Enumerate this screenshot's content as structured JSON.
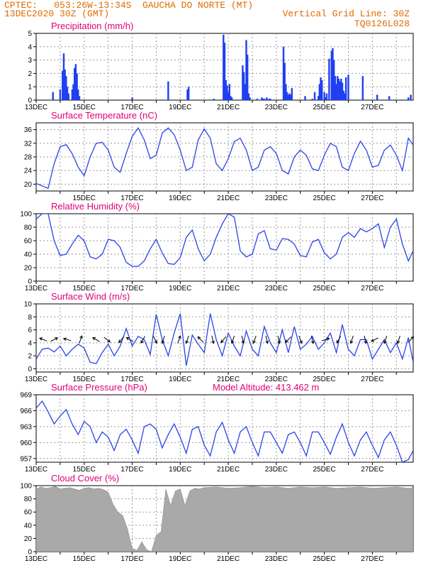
{
  "header": {
    "line1": "CPTEC:   053:26W-13:34S  GAUCHA DO NORTE (MT)",
    "line2": "13DEC2020 30Z (GMT)",
    "grid_note": "Vertical Grid Line: 30Z",
    "code": "TQ0126L028",
    "altitude_note": "Model Altitude: 413.462 m"
  },
  "colors": {
    "line": "#2b44e8",
    "bar": "#1f3ff0",
    "cloud": "#a9a9a9",
    "title": "#e0007a",
    "header": "#e06a00",
    "arrow": "#000000"
  },
  "chart_data": [
    {
      "type": "bar",
      "title": "Precipitation (mm/h)",
      "ylim": [
        0,
        5
      ],
      "yticks": [
        0,
        1,
        2,
        3,
        4,
        5
      ],
      "x_days_start": 13.0,
      "x_days_end": 28.7,
      "xticks": [
        "13DEC",
        "15DEC",
        "17DEC",
        "19DEC",
        "21DEC",
        "23DEC",
        "25DEC",
        "27DEC"
      ],
      "x": [
        13.7,
        14.0,
        14.1,
        14.15,
        14.2,
        14.25,
        14.3,
        14.35,
        14.5,
        14.55,
        14.6,
        14.65,
        14.7,
        14.75,
        14.8,
        17.0,
        18.5,
        19.3,
        19.35,
        20.4,
        20.8,
        20.85,
        20.9,
        20.95,
        21.0,
        21.05,
        21.1,
        21.15,
        21.6,
        21.65,
        21.7,
        21.75,
        21.8,
        21.85,
        21.9,
        22.2,
        22.4,
        22.45,
        22.5,
        22.6,
        22.7,
        22.75,
        23.3,
        23.35,
        23.4,
        23.45,
        23.5,
        23.55,
        23.6,
        23.65,
        24.2,
        24.5,
        24.6,
        24.75,
        24.8,
        24.85,
        24.9,
        25.0,
        25.05,
        25.1,
        25.2,
        25.3,
        25.35,
        25.4,
        25.45,
        25.5,
        25.55,
        25.6,
        25.65,
        25.7,
        25.75,
        25.8,
        25.85,
        25.9,
        26.0,
        26.6,
        27.2,
        27.7,
        28.5,
        28.6
      ],
      "values": [
        0.6,
        0.8,
        2.2,
        3.5,
        2.3,
        1.8,
        1.0,
        0.5,
        0.8,
        1.2,
        2.4,
        2.7,
        2.0,
        0.8,
        0.3,
        0.2,
        1.4,
        0.8,
        1.0,
        0.1,
        4.9,
        4.3,
        1.5,
        1.1,
        0.6,
        1.2,
        0.3,
        0.2,
        2.6,
        2.1,
        1.2,
        4.5,
        3.4,
        0.5,
        0.2,
        0.1,
        0.2,
        0.1,
        0.1,
        0.2,
        0.1,
        0.1,
        4.0,
        2.8,
        1.2,
        0.6,
        0.4,
        0.5,
        0.4,
        0.9,
        0.3,
        0.1,
        0.6,
        0.3,
        1.2,
        1.7,
        1.5,
        0.6,
        0.2,
        0.5,
        3.1,
        3.7,
        3.9,
        3.0,
        1.8,
        1.2,
        1.8,
        1.6,
        1.4,
        1.6,
        1.3,
        0.7,
        0.5,
        1.7,
        1.9,
        1.8,
        0.4,
        0.3,
        0.2,
        0.4
      ]
    },
    {
      "type": "line",
      "title": "Surface Temperature (nC)",
      "ylim": [
        18,
        38
      ],
      "yticks": [
        20,
        24,
        28,
        32,
        36
      ],
      "xticks": [
        "15DEC",
        "17DEC",
        "19DEC",
        "21DEC",
        "23DEC",
        "25DEC",
        "27DEC"
      ],
      "x": [
        13.0,
        13.25,
        13.5,
        13.75,
        14.0,
        14.25,
        14.5,
        14.75,
        15.0,
        15.25,
        15.5,
        15.75,
        16.0,
        16.25,
        16.5,
        16.75,
        17.0,
        17.25,
        17.5,
        17.75,
        18.0,
        18.25,
        18.5,
        18.75,
        19.0,
        19.25,
        19.5,
        19.75,
        20.0,
        20.25,
        20.5,
        20.75,
        21.0,
        21.25,
        21.5,
        21.75,
        22.0,
        22.25,
        22.5,
        22.75,
        23.0,
        23.25,
        23.5,
        23.75,
        24.0,
        24.25,
        24.5,
        24.75,
        25.0,
        25.25,
        25.5,
        25.75,
        26.0,
        26.25,
        26.5,
        26.75,
        27.0,
        27.25,
        27.5,
        27.75,
        28.0,
        28.25,
        28.5,
        28.7
      ],
      "values": [
        20.2,
        19.5,
        18.8,
        26.0,
        31.0,
        31.6,
        29.0,
        25.0,
        22.5,
        28.0,
        32.0,
        32.3,
        30.0,
        25.0,
        23.5,
        29.0,
        34.0,
        36.5,
        33.0,
        27.5,
        28.5,
        35.0,
        36.5,
        34.5,
        30.0,
        24.0,
        25.0,
        33.0,
        36.2,
        33.5,
        26.0,
        24.0,
        27.5,
        32.5,
        33.5,
        30.0,
        24.0,
        25.0,
        30.0,
        31.0,
        29.0,
        24.0,
        23.0,
        28.0,
        30.0,
        28.5,
        24.5,
        24.0,
        28.5,
        32.0,
        31.0,
        25.0,
        24.0,
        29.0,
        32.6,
        30.0,
        25.0,
        25.5,
        30.0,
        31.5,
        28.5,
        24.0,
        33.5,
        31.5
      ]
    },
    {
      "type": "line",
      "title": "Relative Humidity (%)",
      "ylim": [
        0,
        100
      ],
      "yticks": [
        0,
        20,
        40,
        60,
        80,
        100
      ],
      "xticks": [
        "13DEC",
        "15DEC",
        "17DEC",
        "19DEC",
        "21DEC",
        "23DEC",
        "25DEC",
        "27DEC"
      ],
      "x": [
        13.0,
        13.25,
        13.5,
        13.75,
        14.0,
        14.25,
        14.5,
        14.75,
        15.0,
        15.25,
        15.5,
        15.75,
        16.0,
        16.25,
        16.5,
        16.75,
        17.0,
        17.25,
        17.5,
        17.75,
        18.0,
        18.25,
        18.5,
        18.75,
        19.0,
        19.25,
        19.5,
        19.75,
        20.0,
        20.25,
        20.5,
        20.75,
        21.0,
        21.25,
        21.5,
        21.75,
        22.0,
        22.25,
        22.5,
        22.75,
        23.0,
        23.25,
        23.5,
        23.75,
        24.0,
        24.25,
        24.5,
        24.75,
        25.0,
        25.25,
        25.5,
        25.75,
        26.0,
        26.25,
        26.5,
        26.75,
        27.0,
        27.25,
        27.5,
        27.75,
        28.0,
        28.25,
        28.5,
        28.7
      ],
      "values": [
        92,
        100,
        100,
        60,
        38,
        40,
        55,
        68,
        60,
        36,
        33,
        40,
        62,
        60,
        50,
        28,
        22,
        22,
        30,
        48,
        62,
        42,
        26,
        25,
        35,
        65,
        76,
        48,
        30,
        40,
        65,
        85,
        100,
        95,
        45,
        36,
        40,
        70,
        75,
        48,
        46,
        63,
        62,
        55,
        38,
        36,
        58,
        62,
        42,
        33,
        40,
        65,
        72,
        65,
        78,
        73,
        78,
        85,
        50,
        80,
        92,
        55,
        30,
        45
      ]
    },
    {
      "type": "line",
      "title": "Surface Wind (m/s)",
      "ylim": [
        -0.5,
        10
      ],
      "yticks": [
        0,
        2,
        4,
        6,
        8,
        10
      ],
      "xticks": [
        "13DEC",
        "15DEC",
        "17DEC",
        "19DEC",
        "21DEC",
        "23DEC",
        "25DEC",
        "27DEC"
      ],
      "x": [
        13.0,
        13.25,
        13.5,
        13.75,
        14.0,
        14.25,
        14.5,
        14.75,
        15.0,
        15.25,
        15.5,
        15.75,
        16.0,
        16.25,
        16.5,
        16.75,
        17.0,
        17.25,
        17.5,
        17.75,
        18.0,
        18.25,
        18.5,
        18.75,
        19.0,
        19.25,
        19.5,
        19.75,
        20.0,
        20.25,
        20.5,
        20.75,
        21.0,
        21.25,
        21.5,
        21.75,
        22.0,
        22.25,
        22.5,
        22.75,
        23.0,
        23.25,
        23.5,
        23.75,
        24.0,
        24.25,
        24.5,
        24.75,
        25.0,
        25.25,
        25.5,
        25.75,
        26.0,
        26.25,
        26.5,
        26.75,
        27.0,
        27.25,
        27.5,
        27.75,
        28.0,
        28.25,
        28.5,
        28.7
      ],
      "values": [
        1.5,
        3.0,
        3.2,
        2.6,
        3.5,
        2.0,
        3.0,
        3.8,
        3.2,
        1.0,
        0.8,
        2.5,
        3.8,
        2.0,
        3.5,
        6.2,
        3.5,
        5.0,
        4.5,
        2.2,
        8.4,
        4.5,
        2.0,
        5.5,
        8.5,
        0.5,
        5.2,
        3.8,
        2.5,
        8.5,
        4.5,
        2.0,
        5.5,
        3.5,
        2.0,
        5.8,
        3.0,
        2.0,
        6.5,
        4.0,
        2.5,
        6.0,
        2.5,
        6.5,
        3.0,
        3.8,
        5.0,
        3.0,
        4.0,
        5.5,
        2.5,
        6.8,
        3.0,
        2.0,
        4.5,
        4.5,
        1.5,
        3.0,
        4.5,
        2.5,
        4.0,
        1.5,
        4.8,
        1.0
      ],
      "arrows": [
        {
          "x": 13.3,
          "u": -1.0,
          "v": 0.4
        },
        {
          "x": 13.75,
          "u": 0.6,
          "v": 0.3
        },
        {
          "x": 14.3,
          "u": -0.7,
          "v": 0.2
        },
        {
          "x": 14.85,
          "u": 0.3,
          "v": 0.8
        },
        {
          "x": 15.5,
          "u": -0.7,
          "v": 0.4
        },
        {
          "x": 15.95,
          "u": 0.5,
          "v": -0.4
        },
        {
          "x": 16.55,
          "u": -0.6,
          "v": -0.7
        },
        {
          "x": 16.9,
          "u": -0.8,
          "v": 0.5
        },
        {
          "x": 17.45,
          "u": -0.5,
          "v": -0.9
        },
        {
          "x": 17.95,
          "u": 0.5,
          "v": -1.0
        },
        {
          "x": 18.3,
          "u": -0.3,
          "v": -1.0
        },
        {
          "x": 18.95,
          "u": 0.3,
          "v": 0.8
        },
        {
          "x": 19.3,
          "u": -0.3,
          "v": -0.9
        },
        {
          "x": 19.85,
          "u": -0.6,
          "v": 0.6
        },
        {
          "x": 20.35,
          "u": 0.2,
          "v": -0.9
        },
        {
          "x": 20.8,
          "u": -0.5,
          "v": -0.6
        },
        {
          "x": 21.2,
          "u": -0.3,
          "v": -0.9
        },
        {
          "x": 21.6,
          "u": 0.2,
          "v": -0.9
        },
        {
          "x": 22.1,
          "u": -0.3,
          "v": -0.8
        },
        {
          "x": 22.6,
          "u": 0.2,
          "v": -0.9
        },
        {
          "x": 23.1,
          "u": 0.2,
          "v": -0.9
        },
        {
          "x": 23.5,
          "u": -0.6,
          "v": -0.6
        },
        {
          "x": 24.0,
          "u": 0.3,
          "v": -0.8
        },
        {
          "x": 24.5,
          "u": 0.2,
          "v": -0.9
        },
        {
          "x": 25.05,
          "u": 0.6,
          "v": 0.2
        },
        {
          "x": 25.6,
          "u": -0.4,
          "v": -0.7
        },
        {
          "x": 26.15,
          "u": -0.3,
          "v": -0.9
        },
        {
          "x": 26.7,
          "u": 0.2,
          "v": -0.9
        },
        {
          "x": 27.1,
          "u": -0.8,
          "v": -0.4
        },
        {
          "x": 27.55,
          "u": -0.3,
          "v": -0.9
        },
        {
          "x": 28.1,
          "u": -0.3,
          "v": -0.9
        },
        {
          "x": 28.6,
          "u": 0.5,
          "v": 0.5
        }
      ]
    },
    {
      "type": "line",
      "title": "Surface Pressure (hPa)",
      "ylim": [
        956.3,
        969
      ],
      "yticks": [
        957,
        960,
        963,
        966,
        969
      ],
      "xticks": [
        "13DEC",
        "15DEC",
        "17DEC",
        "19DEC",
        "21DEC",
        "23DEC",
        "25DEC",
        "27DEC"
      ],
      "x": [
        13.0,
        13.25,
        13.5,
        13.75,
        14.0,
        14.25,
        14.5,
        14.75,
        15.0,
        15.25,
        15.5,
        15.75,
        16.0,
        16.25,
        16.5,
        16.75,
        17.0,
        17.25,
        17.5,
        17.75,
        18.0,
        18.25,
        18.5,
        18.75,
        19.0,
        19.25,
        19.5,
        19.75,
        20.0,
        20.25,
        20.5,
        20.75,
        21.0,
        21.25,
        21.5,
        21.75,
        22.0,
        22.25,
        22.5,
        22.75,
        23.0,
        23.25,
        23.5,
        23.75,
        24.0,
        24.25,
        24.5,
        24.75,
        25.0,
        25.25,
        25.5,
        25.75,
        26.0,
        26.25,
        26.5,
        26.75,
        27.0,
        27.25,
        27.5,
        27.75,
        28.0,
        28.25,
        28.5,
        28.7
      ],
      "values": [
        966.5,
        967.8,
        965.8,
        963.5,
        965.0,
        966.2,
        963.5,
        961.5,
        964.0,
        963.0,
        960.0,
        962.0,
        961.0,
        958.5,
        961.5,
        962.5,
        960.5,
        958.0,
        963.0,
        963.5,
        962.5,
        959.0,
        961.5,
        963.5,
        961.0,
        958.0,
        962.5,
        963.0,
        959.5,
        957.5,
        962.0,
        963.8,
        960.5,
        958.0,
        962.0,
        963.0,
        960.0,
        957.5,
        962.0,
        962.0,
        960.0,
        958.0,
        961.5,
        962.0,
        960.0,
        957.5,
        962.0,
        962.0,
        960.0,
        957.8,
        961.0,
        963.5,
        960.0,
        957.5,
        960.5,
        962.0,
        959.5,
        957.2,
        960.5,
        962.0,
        959.5,
        956.3,
        956.8,
        958.5
      ]
    },
    {
      "type": "area",
      "title": "Cloud Cover (%)",
      "ylim": [
        0,
        100
      ],
      "yticks": [
        0,
        20,
        40,
        60,
        80,
        100
      ],
      "xticks": [
        "13DEC",
        "15DEC",
        "17DEC",
        "19DEC",
        "21DEC",
        "23DEC",
        "25DEC",
        "27DEC"
      ],
      "x": [
        13.0,
        13.2,
        13.4,
        13.6,
        13.8,
        14.0,
        14.2,
        14.4,
        14.6,
        14.8,
        15.0,
        15.2,
        15.4,
        15.6,
        15.8,
        16.0,
        16.2,
        16.4,
        16.6,
        16.8,
        17.0,
        17.2,
        17.4,
        17.6,
        17.8,
        18.0,
        18.2,
        18.4,
        18.6,
        18.8,
        19.0,
        19.2,
        19.4,
        19.6,
        19.8,
        20.0,
        20.5,
        21.0,
        21.5,
        22.0,
        22.5,
        23.0,
        23.5,
        24.0,
        24.5,
        25.0,
        25.5,
        26.0,
        26.5,
        27.0,
        27.5,
        28.0,
        28.5,
        28.7
      ],
      "values": [
        95,
        98,
        96,
        97,
        99,
        95,
        96,
        97,
        95,
        93,
        96,
        97,
        95,
        96,
        94,
        90,
        72,
        60,
        55,
        35,
        5,
        2,
        15,
        3,
        0,
        25,
        30,
        95,
        70,
        92,
        95,
        70,
        92,
        96,
        95,
        97,
        98,
        96,
        97,
        99,
        97,
        98,
        96,
        98,
        97,
        98,
        96,
        97,
        98,
        96,
        97,
        98,
        96,
        97
      ]
    }
  ]
}
